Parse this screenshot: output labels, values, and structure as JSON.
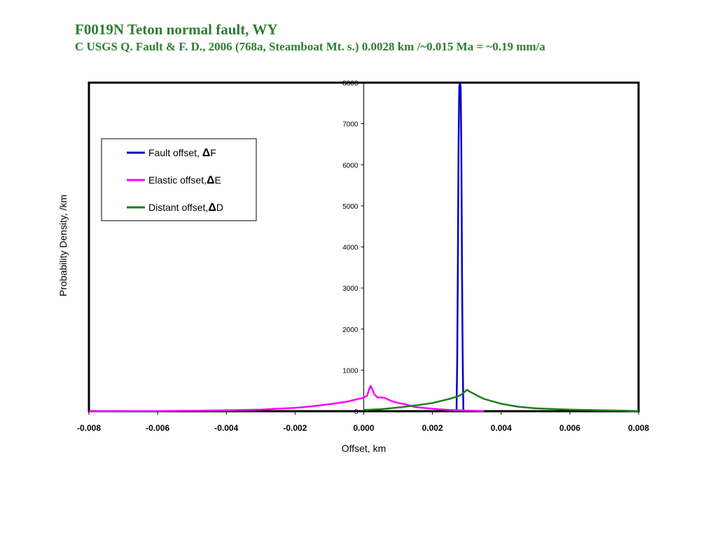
{
  "chart_data": {
    "type": "line",
    "title": "F0019N  Teton normal fault, WY",
    "subtitle": "C  USGS Q. Fault & F. D., 2006 (768a, Steamboat Mt. s.) 0.0028 km /~0.015 Ma = ~0.19 mm/a",
    "xlabel": "Offset, km",
    "ylabel": "Probability Density, /km",
    "xlim": [
      -0.008,
      0.008
    ],
    "ylim": [
      0,
      8000
    ],
    "x_ticks": [
      "-0.008",
      "-0.006",
      "-0.004",
      "-0.002",
      "0.000",
      "0.002",
      "0.004",
      "0.006",
      "0.008"
    ],
    "y_ticks": [
      "0",
      "1000",
      "2000",
      "3000",
      "4000",
      "5000",
      "6000",
      "7000",
      "8000"
    ],
    "legend_position": "upper-left",
    "grid": false,
    "series": [
      {
        "name": "Fault offset, ΔF",
        "legend_prefix": "Fault offset, ",
        "legend_symbol": "Δ",
        "legend_suffix": "F",
        "color": "#0000cc",
        "x": [
          0.0027,
          0.00272,
          0.00274,
          0.00276,
          0.00278,
          0.0028,
          0.00282,
          0.00284,
          0.00286,
          0.00288,
          0.0029
        ],
        "y": [
          0,
          1300,
          3500,
          6500,
          7900,
          8100,
          7900,
          6500,
          3500,
          1300,
          0
        ]
      },
      {
        "name": "Elastic offset,ΔE",
        "legend_prefix": "Elastic offset,",
        "legend_symbol": "Δ",
        "legend_suffix": "E",
        "color": "#ff00ff",
        "x": [
          -0.008,
          -0.006,
          -0.005,
          -0.004,
          -0.003,
          -0.002,
          -0.0015,
          -0.001,
          -0.0005,
          -0.0002,
          0.0,
          0.0001,
          0.00015,
          0.0002,
          0.00025,
          0.0003,
          0.0004,
          0.0006,
          0.0008,
          0.001,
          0.0012,
          0.0015,
          0.002,
          0.0025,
          0.003,
          0.0035
        ],
        "y": [
          0,
          5,
          10,
          20,
          40,
          80,
          120,
          170,
          230,
          290,
          330,
          380,
          520,
          620,
          530,
          420,
          340,
          330,
          250,
          200,
          170,
          100,
          60,
          30,
          15,
          5
        ]
      },
      {
        "name": "Distant offset,ΔD",
        "legend_prefix": "Distant offset,",
        "legend_symbol": "Δ",
        "legend_suffix": "D",
        "color": "#1a7f1a",
        "x": [
          0.0,
          0.0005,
          0.001,
          0.0015,
          0.002,
          0.0025,
          0.0028,
          0.00295,
          0.003,
          0.0031,
          0.0033,
          0.0035,
          0.004,
          0.0045,
          0.005,
          0.006,
          0.007,
          0.008
        ],
        "y": [
          30,
          50,
          90,
          140,
          200,
          300,
          380,
          480,
          520,
          470,
          380,
          300,
          180,
          110,
          70,
          40,
          20,
          5
        ]
      }
    ]
  }
}
